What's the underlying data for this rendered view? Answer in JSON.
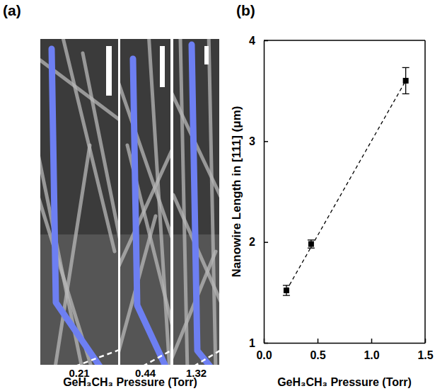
{
  "chart_data": {
    "type": "scatter",
    "title": "(b)",
    "x_label": "GeH₃CH₃ Pressure (Torr)",
    "y_label": "Nanowire Length in [111] (μm)",
    "xlim": [
      0,
      1.5
    ],
    "xticks": [
      {
        "value": 0,
        "label": "0.0"
      },
      {
        "value": 0.5,
        "label": "0.5"
      },
      {
        "value": 1,
        "label": "1.0"
      },
      {
        "value": 1.5,
        "label": "1.5"
      }
    ],
    "ylim": [
      1,
      4
    ],
    "yticks": [
      1,
      2,
      3,
      4
    ],
    "grid": false,
    "series": [
      {
        "type": "scatter",
        "color": "#000000",
        "marker": "square",
        "x": [
          0.21,
          0.44,
          1.32
        ],
        "values": [
          1.52,
          1.98,
          3.6
        ],
        "errors": [
          0.05,
          0.04,
          0.13
        ]
      },
      {
        "type": "line",
        "color": "#000000",
        "line_style": "dashed",
        "x": [
          0.21,
          1.32
        ],
        "values": [
          1.52,
          3.6
        ]
      }
    ]
  },
  "panel_a": {
    "title": "(a)",
    "x_label": "GeH₃CH₃ Pressure (Torr)",
    "images": [
      0.21,
      0.44,
      1.32
    ]
  }
}
